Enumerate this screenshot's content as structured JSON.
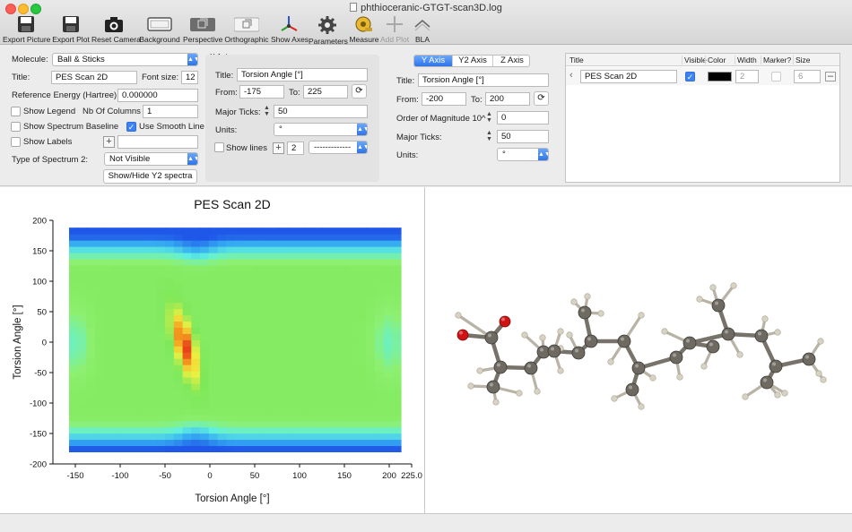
{
  "window": {
    "title": "phthioceranic-GTGT-scan3D.log"
  },
  "toolbar": [
    {
      "label": "Export Picture",
      "icon": "floppy-disk-icon",
      "enabled": true
    },
    {
      "label": "Export Plot",
      "icon": "floppy-disk-icon",
      "enabled": true
    },
    {
      "label": "Reset Camera",
      "icon": "camera-icon",
      "enabled": true
    },
    {
      "label": "Background",
      "icon": "background-rectangle-icon",
      "enabled": true
    },
    {
      "label": "Perspective",
      "icon": "perspective-cube-icon",
      "enabled": true
    },
    {
      "label": "Orthographic",
      "icon": "orthographic-cube-icon",
      "enabled": true
    },
    {
      "label": "Show Axes",
      "icon": "axes-icon",
      "enabled": true
    },
    {
      "label": "Parameters",
      "icon": "gear-icon",
      "enabled": true
    },
    {
      "label": "Measure",
      "icon": "ruler-tape-icon",
      "enabled": true
    },
    {
      "label": "Add Plot",
      "icon": "plus-icon",
      "enabled": false
    },
    {
      "label": "BLA",
      "icon": "bla-chevron-icon",
      "enabled": true
    }
  ],
  "left": {
    "molecule_label": "Molecule:",
    "molecule_value": "Ball & Sticks",
    "title_label": "Title:",
    "title_value": "PES Scan 2D",
    "fontsize_label": "Font size:",
    "fontsize_value": "12",
    "refenergy_label": "Reference Energy (Hartree):",
    "refenergy_value": "0.000000",
    "show_legend": "Show Legend",
    "show_legend_checked": false,
    "nbcols_label": "Nb Of Columns",
    "nbcols_value": "1",
    "show_baseline": "Show Spectrum Baseline",
    "show_baseline_checked": false,
    "smooth_label": "Use Smooth Line",
    "smooth_checked": true,
    "show_labels": "Show Labels",
    "show_labels_checked": false,
    "labels_value": "",
    "spectrum2_label": "Type of Spectrum 2:",
    "spectrum2_value": "Not Visible",
    "showhide_button": "Show/Hide Y2 spectra"
  },
  "xaxis": {
    "group": "X Axis",
    "title_label": "Title:",
    "title_value": "Torsion Angle [°]",
    "from_label": "From:",
    "from_value": "-175",
    "to_label": "To:",
    "to_value": "225",
    "major_label": "Major Ticks:",
    "major_value": "50",
    "units_label": "Units:",
    "units_value": "°",
    "showlines_label": "Show lines",
    "showlines_checked": false,
    "lines_value": "2",
    "linestyle_value": "-------------"
  },
  "yaxis": {
    "tabs": [
      "Y Axis",
      "Y2 Axis",
      "Z Axis"
    ],
    "active_tab": 0,
    "title_label": "Title:",
    "title_value": "Torsion Angle [°]",
    "from_label": "From:",
    "from_value": "-200",
    "to_label": "To:",
    "to_value": "200",
    "magnitude_label": "Order of Magnitude 10^",
    "magnitude_value": "0",
    "major_label": "Major Ticks:",
    "major_value": "50",
    "units_label": "Units:",
    "units_value": "°"
  },
  "series_table": {
    "headers": [
      "Title",
      "Visible",
      "Color",
      "Width",
      "Marker?",
      "Size"
    ],
    "rows": [
      {
        "title": "PES Scan 2D",
        "visible": true,
        "color": "#000000",
        "width": "2",
        "marker": false,
        "size": "6"
      }
    ]
  },
  "chart_data": {
    "type": "heatmap",
    "title": "PES Scan 2D",
    "xlabel": "Torsion Angle [°]",
    "ylabel": "Torsion Angle [°]",
    "xlim": [
      -175,
      225
    ],
    "ylim": [
      -200,
      200
    ],
    "xticks": [
      -150,
      -100,
      -50,
      0,
      50,
      100,
      150,
      200,
      225
    ],
    "xtick_labels": [
      "-150",
      "-100",
      "-50",
      "0",
      "50",
      "100",
      "150",
      "200",
      "225.0"
    ],
    "yticks": [
      -200,
      -150,
      -100,
      -50,
      0,
      50,
      100,
      150,
      200
    ],
    "data_x_range": [
      -157,
      213
    ],
    "data_y_range": [
      -180,
      188
    ],
    "grid": false,
    "colormap": [
      "#1f57e8",
      "#34a8f2",
      "#5ff0e0",
      "#8ef070",
      "#7ee85a",
      "#f0f040",
      "#f4a020",
      "#e83a1a"
    ],
    "minimum_region": {
      "x": [
        -45,
        -10
      ],
      "y": [
        -70,
        50
      ]
    }
  },
  "molecule_view": {
    "style": "ball-and-stick",
    "carbon_color": "#6e6a62",
    "oxygen_color": "#d01414",
    "hydrogen_color": "#d8d2c2",
    "background": "#ffffff"
  }
}
